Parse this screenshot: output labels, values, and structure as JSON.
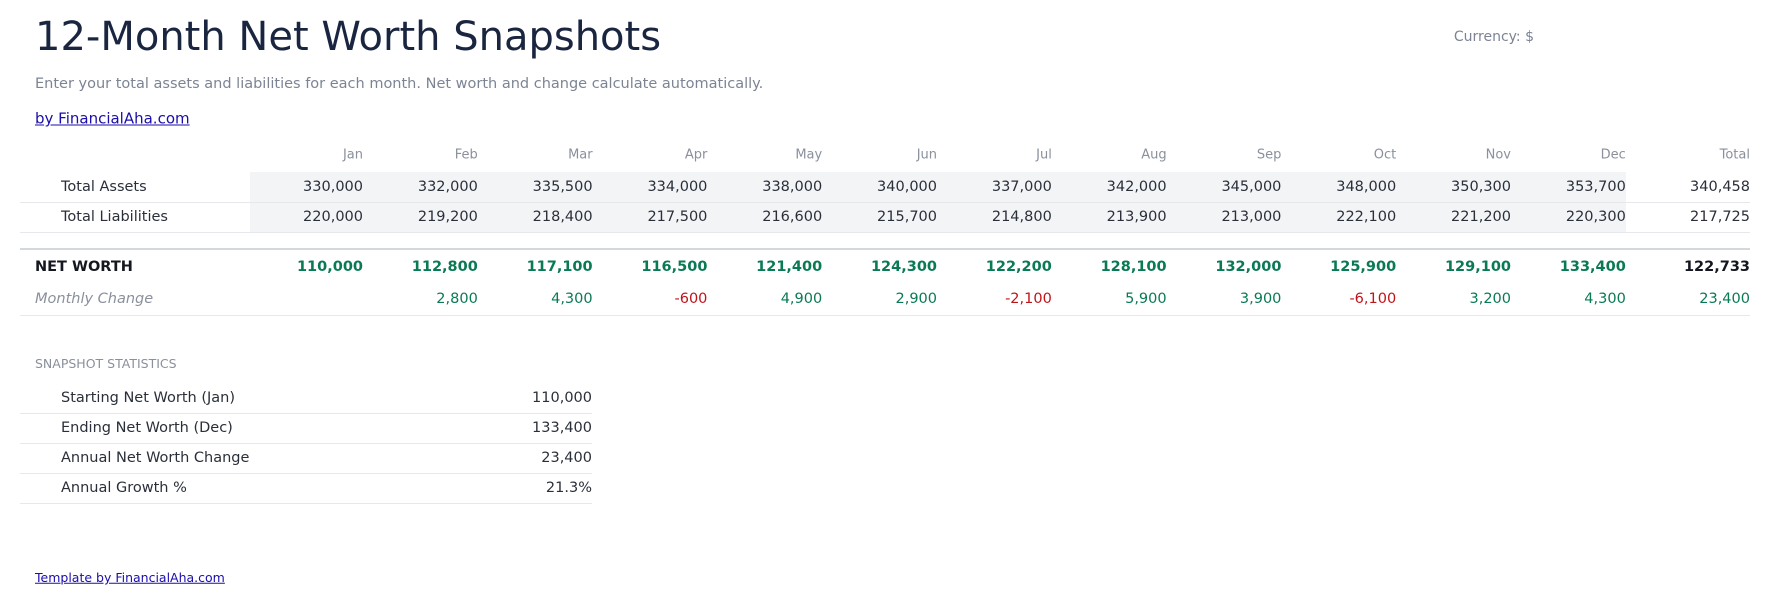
{
  "header": {
    "title": "12-Month Net Worth Snapshots",
    "currency": "Currency: $",
    "subtitle": "Enter your total assets and liabilities for each month. Net worth and change calculate automatically.",
    "link": "by FinancialAha.com"
  },
  "table": {
    "columns": [
      "Jan",
      "Feb",
      "Mar",
      "Apr",
      "May",
      "Jun",
      "Jul",
      "Aug",
      "Sep",
      "Oct",
      "Nov",
      "Dec",
      "Total"
    ],
    "rows": [
      {
        "label": "Total Assets",
        "cells": [
          "330,000",
          "332,000",
          "335,500",
          "334,000",
          "338,000",
          "340,000",
          "337,000",
          "342,000",
          "345,000",
          "348,000",
          "350,300",
          "353,700",
          "340,458"
        ]
      },
      {
        "label": "Total Liabilities",
        "cells": [
          "220,000",
          "219,200",
          "218,400",
          "217,500",
          "216,600",
          "215,700",
          "214,800",
          "213,900",
          "213,000",
          "222,100",
          "221,200",
          "220,300",
          "217,725"
        ]
      },
      {
        "label": "NET WORTH",
        "cells": [
          "110,000",
          "112,800",
          "117,100",
          "116,500",
          "121,400",
          "124,300",
          "122,200",
          "128,100",
          "132,000",
          "125,900",
          "129,100",
          "133,400",
          "122,733"
        ]
      },
      {
        "label": "Monthly Change",
        "cells": [
          null,
          "2,800",
          "4,300",
          "-600",
          "4,900",
          "2,900",
          "-2,100",
          "5,900",
          "3,900",
          "-6,100",
          "3,200",
          "4,300",
          "23,400"
        ]
      }
    ]
  },
  "statistics": {
    "heading": "SNAPSHOT STATISTICS",
    "rows": [
      {
        "label": "Starting Net Worth (Jan)",
        "value": "110,000"
      },
      {
        "label": "Ending Net Worth (Dec)",
        "value": "133,400"
      },
      {
        "label": "Annual Net Worth Change",
        "value": "23,400"
      },
      {
        "label": "Annual Growth %",
        "value": "21.3%"
      }
    ]
  },
  "footer": "Template by FinancialAha.com"
}
